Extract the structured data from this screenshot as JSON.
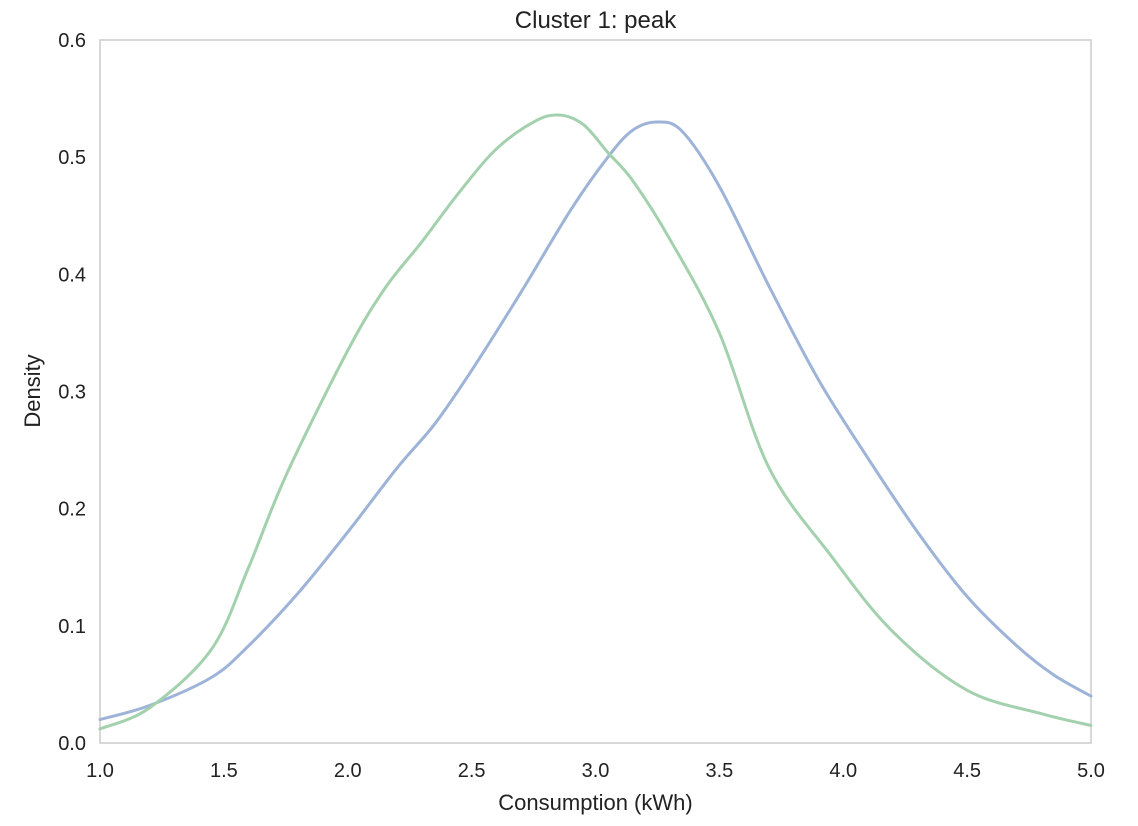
{
  "chart_data": {
    "type": "line",
    "title": "Cluster 1: peak",
    "xlabel": "Consumption (kWh)",
    "ylabel": "Density",
    "xlim": [
      1.0,
      5.0
    ],
    "ylim": [
      0.0,
      0.6
    ],
    "x_ticks": [
      "1.0",
      "1.5",
      "2.0",
      "2.5",
      "3.0",
      "3.5",
      "4.0",
      "4.5",
      "5.0"
    ],
    "y_ticks": [
      "0.0",
      "0.1",
      "0.2",
      "0.3",
      "0.4",
      "0.5",
      "0.6"
    ],
    "grid": false,
    "series": [
      {
        "color": "#9eb3d8",
        "x": [
          1.0,
          1.2,
          1.45,
          1.6,
          1.8,
          2.0,
          2.2,
          2.35,
          2.5,
          2.7,
          2.9,
          3.05,
          3.15,
          3.25,
          3.35,
          3.5,
          3.7,
          3.9,
          4.1,
          4.3,
          4.5,
          4.7,
          4.85,
          5.0
        ],
        "y": [
          0.02,
          0.032,
          0.056,
          0.083,
          0.128,
          0.18,
          0.235,
          0.272,
          0.318,
          0.385,
          0.455,
          0.5,
          0.523,
          0.53,
          0.522,
          0.475,
          0.39,
          0.31,
          0.243,
          0.18,
          0.125,
          0.083,
          0.058,
          0.04
        ]
      },
      {
        "color": "#a4d1ad",
        "x": [
          1.0,
          1.2,
          1.45,
          1.6,
          1.75,
          2.0,
          2.15,
          2.3,
          2.45,
          2.6,
          2.75,
          2.85,
          2.95,
          3.05,
          3.15,
          3.3,
          3.5,
          3.7,
          3.95,
          4.2,
          4.5,
          4.8,
          5.0
        ],
        "y": [
          0.012,
          0.03,
          0.08,
          0.15,
          0.228,
          0.335,
          0.388,
          0.428,
          0.47,
          0.507,
          0.53,
          0.536,
          0.528,
          0.504,
          0.48,
          0.43,
          0.35,
          0.235,
          0.16,
          0.095,
          0.045,
          0.025,
          0.015
        ]
      }
    ]
  }
}
